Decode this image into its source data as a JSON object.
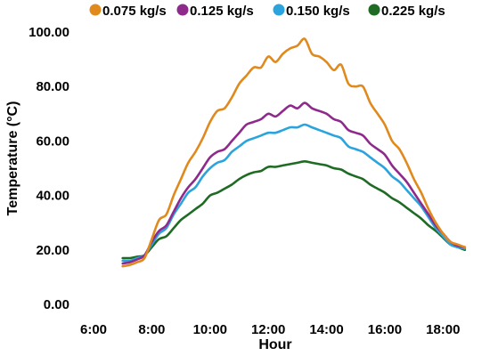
{
  "chart_data": {
    "type": "line",
    "xlabel": "Hour",
    "ylabel": "Temperature (°C)",
    "xlim": [
      6,
      19
    ],
    "ylim": [
      0,
      100
    ],
    "x_ticks": [
      6,
      8,
      10,
      12,
      14,
      16,
      18
    ],
    "x_tick_labels": [
      "6:00",
      "8:00",
      "10:00",
      "12:00",
      "14:00",
      "16:00",
      "18:00"
    ],
    "y_ticks": [
      0,
      20,
      40,
      60,
      80,
      100
    ],
    "y_tick_labels": [
      "0.00",
      "20.00",
      "40.00",
      "60.00",
      "80.00",
      "100.00"
    ],
    "grid": false,
    "legend_position": "top",
    "x": [
      7.0,
      7.25,
      7.5,
      7.75,
      8.0,
      8.25,
      8.5,
      8.75,
      9.0,
      9.25,
      9.5,
      9.75,
      10.0,
      10.25,
      10.5,
      10.75,
      11.0,
      11.25,
      11.5,
      11.75,
      12.0,
      12.25,
      12.5,
      12.75,
      13.0,
      13.25,
      13.5,
      13.75,
      14.0,
      14.25,
      14.5,
      14.75,
      15.0,
      15.25,
      15.5,
      15.75,
      16.0,
      16.25,
      16.5,
      16.75,
      17.0,
      17.25,
      17.5,
      17.75,
      18.0,
      18.25,
      18.5,
      18.75
    ],
    "series": [
      {
        "name": "0.075 kg/s",
        "color": "#E08A1E",
        "values": [
          14,
          14.5,
          15.5,
          17,
          24,
          31,
          33,
          40,
          46,
          52,
          56,
          61,
          67,
          71,
          72,
          76,
          81,
          84,
          87,
          87,
          91,
          89,
          92,
          94,
          95,
          97.5,
          92,
          91,
          89,
          86,
          88,
          81,
          80,
          80,
          74,
          70,
          66,
          60,
          57,
          52,
          46,
          41,
          35,
          30,
          26,
          23,
          22,
          21
        ]
      },
      {
        "name": "0.125 kg/s",
        "color": "#8E2A8B",
        "values": [
          15,
          15.5,
          16.5,
          18,
          23,
          27,
          29,
          34,
          39,
          43,
          46,
          50,
          54,
          56,
          57,
          60,
          63,
          66,
          67,
          68,
          70,
          69,
          71,
          73,
          72,
          74,
          72,
          71,
          70,
          68,
          67,
          64,
          63,
          62,
          59,
          57,
          55,
          51,
          48,
          45,
          41,
          37,
          33,
          29,
          26,
          23,
          21.5,
          21
        ]
      },
      {
        "name": "0.150 kg/s",
        "color": "#2BA3DC",
        "values": [
          16,
          16,
          17,
          18,
          22,
          26,
          28,
          33,
          37,
          41,
          43,
          47,
          50,
          52,
          53,
          56,
          58,
          60,
          61,
          62,
          63,
          63,
          64,
          65,
          65,
          66,
          65,
          64,
          63,
          62,
          61,
          58,
          57,
          56,
          54,
          52,
          50,
          47,
          45,
          42,
          39,
          36,
          32,
          28,
          25,
          22,
          21,
          20.5
        ]
      },
      {
        "name": "0.225 kg/s",
        "color": "#1E6B23",
        "values": [
          17,
          17,
          17.5,
          18,
          21,
          24,
          25,
          28,
          31,
          33,
          35,
          37,
          40,
          41,
          42.5,
          44,
          46,
          47.5,
          48.5,
          49,
          50.5,
          50.5,
          51,
          51.5,
          52,
          52.5,
          52,
          51.5,
          51,
          50,
          49.5,
          48,
          47,
          46,
          44,
          42.5,
          41,
          39,
          37.5,
          35.5,
          33.5,
          31.5,
          29,
          27,
          24.5,
          22,
          21,
          20
        ]
      }
    ]
  }
}
